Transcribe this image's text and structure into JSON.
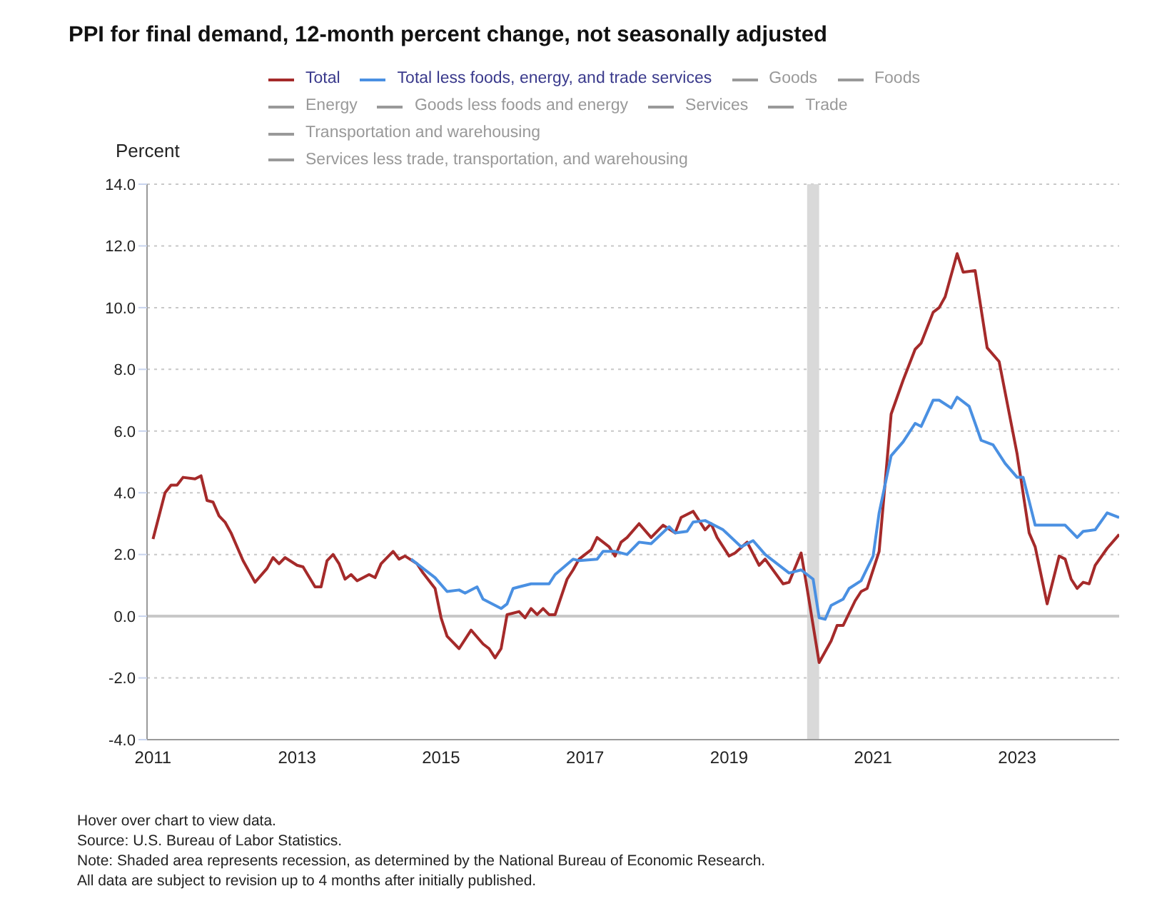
{
  "chart_data": {
    "type": "line",
    "title": "PPI for final demand, 12-month percent change, not seasonally adjusted",
    "ylabel": "Percent",
    "xlim": [
      "2010-12",
      "2024-06"
    ],
    "xticks": [
      "2011",
      "2013",
      "2015",
      "2017",
      "2019",
      "2021",
      "2023"
    ],
    "ylim": [
      -4,
      14
    ],
    "yticks": [
      {
        "value": -4,
        "label": "-4.0"
      },
      {
        "value": -2,
        "label": "-2.0"
      },
      {
        "value": 0,
        "label": "0.0"
      },
      {
        "value": 2,
        "label": "2.0"
      },
      {
        "value": 4,
        "label": "4.0"
      },
      {
        "value": 6,
        "label": "6.0"
      },
      {
        "value": 8,
        "label": "8.0"
      },
      {
        "value": 10,
        "label": "10.0"
      },
      {
        "value": 12,
        "label": "12.0"
      },
      {
        "value": 14,
        "label": "14.0"
      }
    ],
    "grid": "y",
    "legend": "top",
    "marker": "none",
    "line_style": "solid",
    "ref_lines": [
      {
        "axis": "y",
        "value": 0,
        "color": "#c8c8c8"
      }
    ],
    "bands": [
      {
        "axis": "x",
        "from": "2020-02",
        "to": "2020-04",
        "color": "#d9d9d9"
      }
    ],
    "series": [
      {
        "name": "Total",
        "color": "#a52a2a",
        "x": [
          "2011-01",
          "2011-03",
          "2011-04",
          "2011-05",
          "2011-06",
          "2011-08",
          "2011-09",
          "2011-10",
          "2011-11",
          "2011-12",
          "2012-01",
          "2012-02",
          "2012-04",
          "2012-06",
          "2012-08",
          "2012-09",
          "2012-10",
          "2012-11",
          "2013-01",
          "2013-02",
          "2013-04",
          "2013-05",
          "2013-06",
          "2013-07",
          "2013-08",
          "2013-09",
          "2013-10",
          "2013-11",
          "2014-01",
          "2014-02",
          "2014-03",
          "2014-05",
          "2014-06",
          "2014-07",
          "2014-09",
          "2014-10",
          "2014-12",
          "2015-01",
          "2015-02",
          "2015-04",
          "2015-06",
          "2015-08",
          "2015-09",
          "2015-10",
          "2015-11",
          "2015-12",
          "2016-02",
          "2016-03",
          "2016-04",
          "2016-05",
          "2016-06",
          "2016-07",
          "2016-08",
          "2016-10",
          "2016-11",
          "2016-12",
          "2017-02",
          "2017-03",
          "2017-05",
          "2017-06",
          "2017-07",
          "2017-08",
          "2017-10",
          "2017-12",
          "2018-02",
          "2018-04",
          "2018-05",
          "2018-07",
          "2018-09",
          "2018-10",
          "2018-11",
          "2019-01",
          "2019-02",
          "2019-04",
          "2019-06",
          "2019-07",
          "2019-10",
          "2019-11",
          "2020-01",
          "2020-02",
          "2020-04",
          "2020-06",
          "2020-07",
          "2020-08",
          "2020-10",
          "2020-11",
          "2020-12",
          "2021-02",
          "2021-04",
          "2021-06",
          "2021-08",
          "2021-09",
          "2021-11",
          "2021-12",
          "2022-01",
          "2022-03",
          "2022-04",
          "2022-06",
          "2022-08",
          "2022-10",
          "2022-12",
          "2023-01",
          "2023-03",
          "2023-04",
          "2023-06",
          "2023-08",
          "2023-09",
          "2023-10",
          "2023-11",
          "2023-12",
          "2024-01",
          "2024-02",
          "2024-04",
          "2024-06"
        ],
        "values": [
          2.5,
          4.0,
          4.25,
          4.25,
          4.5,
          4.45,
          4.55,
          3.75,
          3.7,
          3.25,
          3.05,
          2.7,
          1.8,
          1.1,
          1.55,
          1.9,
          1.7,
          1.9,
          1.65,
          1.6,
          0.95,
          0.95,
          1.8,
          2.0,
          1.7,
          1.2,
          1.35,
          1.15,
          1.35,
          1.25,
          1.7,
          2.1,
          1.85,
          1.95,
          1.7,
          1.4,
          0.9,
          -0.05,
          -0.65,
          -1.05,
          -0.45,
          -0.9,
          -1.05,
          -1.35,
          -1.05,
          0.05,
          0.15,
          -0.05,
          0.25,
          0.05,
          0.25,
          0.05,
          0.05,
          1.2,
          1.5,
          1.85,
          2.15,
          2.55,
          2.25,
          1.95,
          2.4,
          2.55,
          3.0,
          2.55,
          2.95,
          2.7,
          3.2,
          3.4,
          2.8,
          3.0,
          2.55,
          1.95,
          2.05,
          2.4,
          1.65,
          1.85,
          1.05,
          1.1,
          2.05,
          0.9,
          -1.5,
          -0.8,
          -0.3,
          -0.3,
          0.5,
          0.8,
          0.9,
          2.1,
          6.55,
          7.65,
          8.65,
          8.85,
          9.85,
          10.0,
          10.35,
          11.75,
          11.15,
          11.2,
          8.7,
          8.25,
          6.25,
          5.25,
          2.7,
          2.25,
          0.4,
          1.95,
          1.85,
          1.2,
          0.9,
          1.1,
          1.05,
          1.65,
          2.2,
          2.65
        ]
      },
      {
        "name": "Total less foods, energy, and trade services",
        "color": "#4a90e2",
        "x": [
          "2014-08",
          "2014-10",
          "2014-12",
          "2015-02",
          "2015-04",
          "2015-05",
          "2015-07",
          "2015-08",
          "2015-11",
          "2015-12",
          "2016-01",
          "2016-02",
          "2016-04",
          "2016-07",
          "2016-08",
          "2016-11",
          "2016-12",
          "2017-03",
          "2017-04",
          "2017-06",
          "2017-08",
          "2017-10",
          "2017-12",
          "2018-03",
          "2018-04",
          "2018-06",
          "2018-07",
          "2018-09",
          "2018-12",
          "2019-03",
          "2019-05",
          "2019-07",
          "2019-09",
          "2019-11",
          "2020-01",
          "2020-03",
          "2020-04",
          "2020-05",
          "2020-06",
          "2020-08",
          "2020-09",
          "2020-11",
          "2021-01",
          "2021-02",
          "2021-04",
          "2021-06",
          "2021-08",
          "2021-09",
          "2021-11",
          "2021-12",
          "2022-02",
          "2022-03",
          "2022-05",
          "2022-07",
          "2022-09",
          "2022-11",
          "2023-01",
          "2023-02",
          "2023-04",
          "2023-09",
          "2023-11",
          "2023-12",
          "2024-02",
          "2024-04",
          "2024-06"
        ],
        "values": [
          1.85,
          1.55,
          1.25,
          0.8,
          0.85,
          0.75,
          0.95,
          0.55,
          0.25,
          0.4,
          0.9,
          0.95,
          1.05,
          1.05,
          1.35,
          1.85,
          1.8,
          1.85,
          2.1,
          2.1,
          2.0,
          2.4,
          2.35,
          2.9,
          2.7,
          2.75,
          3.05,
          3.1,
          2.8,
          2.25,
          2.45,
          2.0,
          1.7,
          1.4,
          1.5,
          1.2,
          -0.05,
          -0.1,
          0.35,
          0.55,
          0.9,
          1.15,
          1.95,
          3.35,
          5.2,
          5.65,
          6.25,
          6.15,
          7.0,
          7.0,
          6.75,
          7.1,
          6.8,
          5.7,
          5.55,
          4.95,
          4.5,
          4.5,
          2.95,
          2.95,
          2.55,
          2.75,
          2.8,
          3.35,
          3.2
        ]
      },
      {
        "name": "Goods",
        "color": "#999999"
      },
      {
        "name": "Foods",
        "color": "#999999"
      },
      {
        "name": "Energy",
        "color": "#999999"
      },
      {
        "name": "Goods less foods and energy",
        "color": "#999999"
      },
      {
        "name": "Services",
        "color": "#999999"
      },
      {
        "name": "Trade",
        "color": "#999999"
      },
      {
        "name": "Transportation and warehousing",
        "color": "#999999"
      },
      {
        "name": "Services less trade, transportation, and warehousing",
        "color": "#999999"
      }
    ],
    "annotations": [
      "Hover over chart to view data.",
      "Source: U.S. Bureau of Labor Statistics.",
      "Note: Shaded area represents recession, as determined by the National Bureau of Economic Research.",
      "All data are subject to revision up to 4 months after initially published."
    ]
  }
}
